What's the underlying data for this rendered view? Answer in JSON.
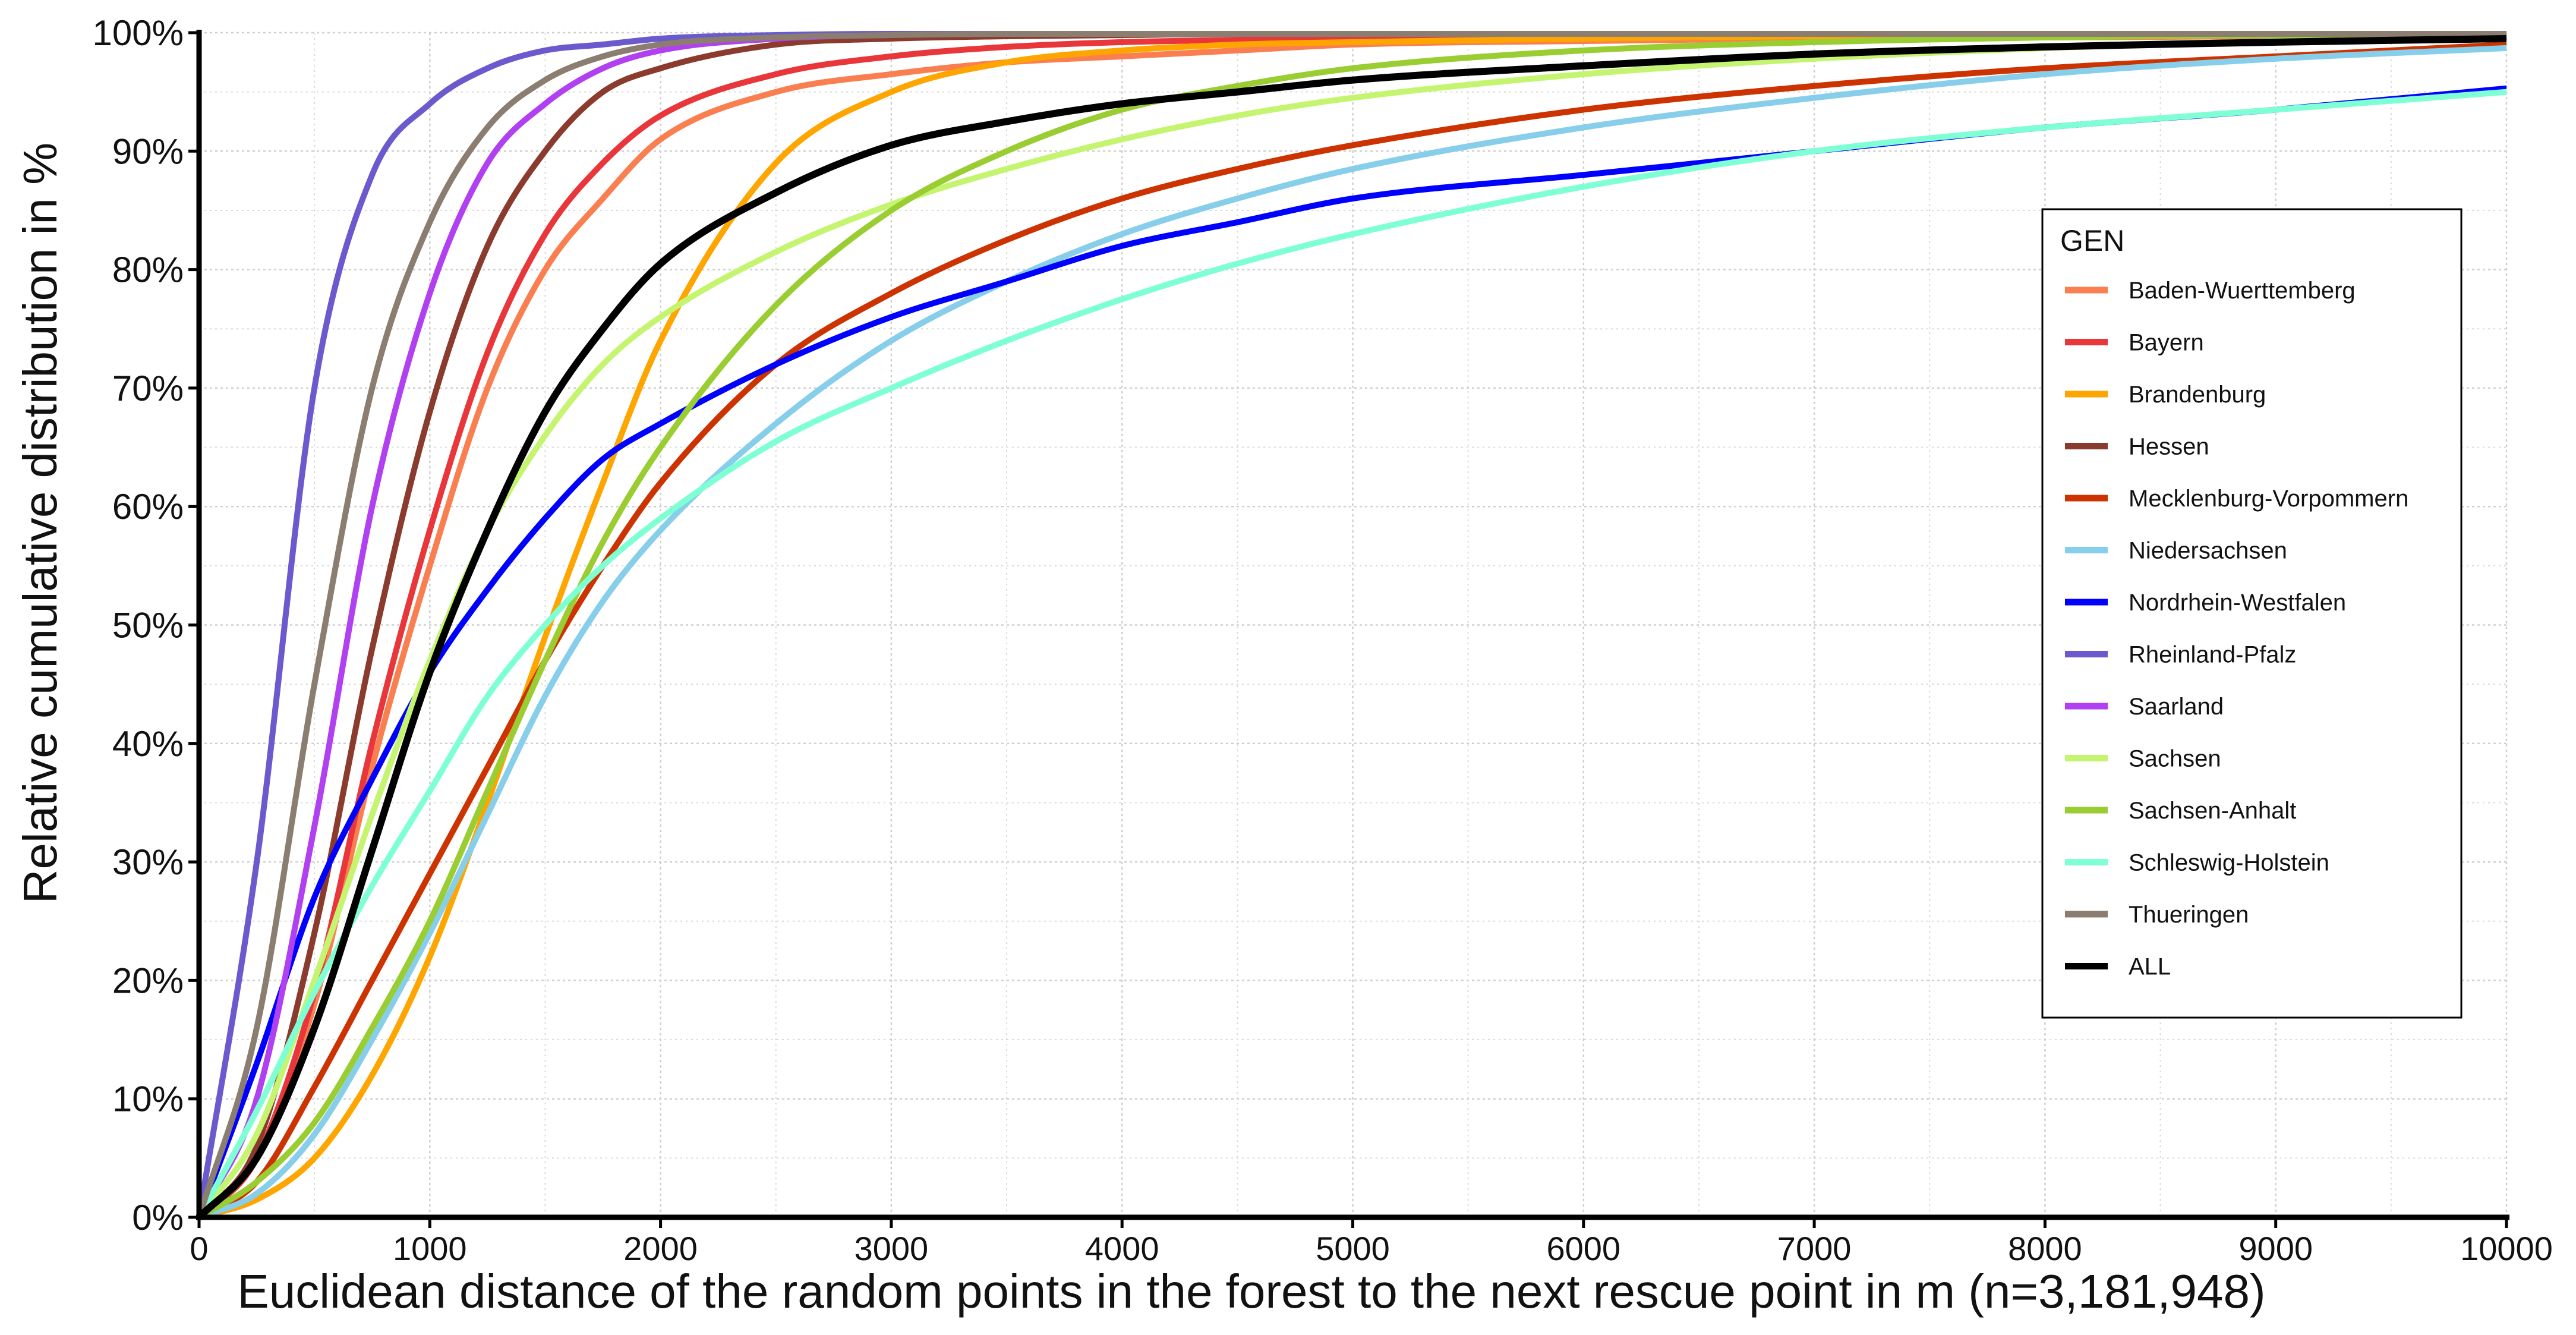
{
  "chart_data": {
    "type": "line",
    "xlabel": "Euclidean distance of the random points in the forest to the next rescue point in m (n=3,181,948)",
    "ylabel": "Relative cumulative distribution in %",
    "xlim": [
      0,
      10000
    ],
    "ylim": [
      0,
      100
    ],
    "x_ticks": [
      0,
      1000,
      2000,
      3000,
      4000,
      5000,
      6000,
      7000,
      8000,
      9000,
      10000
    ],
    "x_tick_labels": [
      "0",
      "1000",
      "2000",
      "3000",
      "4000",
      "5000",
      "6000",
      "7000",
      "8000",
      "9000",
      "10000"
    ],
    "y_ticks": [
      0,
      10,
      20,
      30,
      40,
      50,
      60,
      70,
      80,
      90,
      100
    ],
    "y_tick_labels": [
      "0%",
      "10%",
      "20%",
      "30%",
      "40%",
      "50%",
      "60%",
      "70%",
      "80%",
      "90%",
      "100%"
    ],
    "grid": true,
    "legend": {
      "title": "GEN",
      "position": "right"
    },
    "x": [
      0,
      250,
      500,
      750,
      1000,
      1250,
      1500,
      1750,
      2000,
      2500,
      3000,
      3500,
      4000,
      4500,
      5000,
      6000,
      7000,
      8000,
      9000,
      10000
    ],
    "series": [
      {
        "name": "Baden-Wuerttemberg",
        "color": "#FA7F50",
        "values": [
          0,
          5,
          18,
          38,
          55,
          70,
          80,
          86,
          91,
          95,
          96.5,
          97.5,
          98,
          98.5,
          99,
          99.3,
          99.5,
          99.6,
          99.7,
          99.8
        ]
      },
      {
        "name": "Bayern",
        "color": "#E8363A",
        "values": [
          0,
          5,
          19,
          40,
          58,
          73,
          83,
          89,
          93,
          96.5,
          98,
          98.8,
          99.2,
          99.4,
          99.5,
          99.6,
          99.7,
          99.8,
          99.9,
          99.9
        ]
      },
      {
        "name": "Brandenburg",
        "color": "#FFA500",
        "values": [
          0,
          1.5,
          5,
          12,
          22,
          35,
          49,
          62,
          74,
          89,
          95,
          97.5,
          98.5,
          99,
          99.2,
          99.5,
          99.7,
          99.8,
          99.9,
          99.9
        ]
      },
      {
        "name": "Hessen",
        "color": "#8B3A2E",
        "values": [
          0,
          6,
          24,
          48,
          68,
          82,
          90,
          95,
          97,
          99,
          99.5,
          99.7,
          99.8,
          99.9,
          99.9,
          99.9,
          99.9,
          99.9,
          99.9,
          99.9
        ]
      },
      {
        "name": "Mecklenburg-Vorpommern",
        "color": "#CC3300",
        "values": [
          0,
          3,
          11,
          20,
          29,
          38,
          47,
          55,
          62,
          72,
          78,
          82.5,
          86,
          88.5,
          90.5,
          93.5,
          95.5,
          97,
          98,
          99
        ]
      },
      {
        "name": "Niedersachsen",
        "color": "#87CEEB",
        "values": [
          0,
          2,
          7,
          15,
          24,
          34,
          44,
          52,
          58,
          67,
          74,
          79,
          83,
          86,
          88.5,
          92,
          94.5,
          96.5,
          97.8,
          98.7
        ]
      },
      {
        "name": "Nordrhein-Westfalen",
        "color": "#0000FF",
        "values": [
          0,
          13,
          27,
          37,
          46,
          53,
          59,
          64,
          67,
          72,
          76,
          79,
          82,
          84,
          86,
          88,
          90,
          92,
          93.5,
          95.3
        ]
      },
      {
        "name": "Rheinland-Pfalz",
        "color": "#6A5ACD",
        "values": [
          0,
          30,
          70,
          88,
          94,
          97,
          98.5,
          99,
          99.5,
          99.8,
          99.9,
          99.9,
          99.9,
          99.9,
          99.9,
          99.9,
          99.9,
          99.9,
          99.9,
          99.9
        ]
      },
      {
        "name": "Saarland",
        "color": "#B040F0",
        "values": [
          0,
          10,
          33,
          60,
          78,
          89,
          94,
          97,
          98.5,
          99.5,
          99.8,
          99.9,
          99.9,
          99.9,
          99.9,
          99.9,
          99.9,
          99.9,
          99.9,
          99.9
        ]
      },
      {
        "name": "Sachsen",
        "color": "#C5F570",
        "values": [
          0,
          7,
          20,
          34,
          47,
          58,
          66,
          72,
          76,
          81.5,
          85.5,
          88.5,
          91,
          93,
          94.5,
          96.5,
          97.8,
          98.7,
          99.3,
          99.7
        ]
      },
      {
        "name": "Sachsen-Anhalt",
        "color": "#9ACD32",
        "values": [
          0,
          3,
          8,
          16,
          25,
          36,
          47,
          57,
          65,
          77,
          85,
          90,
          93.5,
          95.5,
          97,
          98.5,
          99.2,
          99.6,
          99.8,
          99.9
        ]
      },
      {
        "name": "Schleswig-Holstein",
        "color": "#7FFFD4",
        "values": [
          0,
          9,
          19,
          28,
          36,
          44,
          50,
          55,
          59,
          65.5,
          70,
          74,
          77.5,
          80.5,
          83,
          87,
          90,
          92,
          93.5,
          95
        ]
      },
      {
        "name": "Thueringen",
        "color": "#8B7D70",
        "values": [
          0,
          16,
          45,
          70,
          84,
          92,
          96,
          98,
          99,
          99.6,
          99.8,
          99.9,
          99.9,
          99.9,
          99.9,
          99.9,
          99.9,
          99.9,
          99.9,
          99.9
        ]
      },
      {
        "name": "ALL",
        "color": "#000000",
        "values": [
          0,
          5,
          16,
          31,
          46,
          58,
          68,
          75,
          80.5,
          86.5,
          90.5,
          92.5,
          94,
          95,
          96,
          97.2,
          98.2,
          98.8,
          99.2,
          99.5
        ]
      }
    ]
  }
}
